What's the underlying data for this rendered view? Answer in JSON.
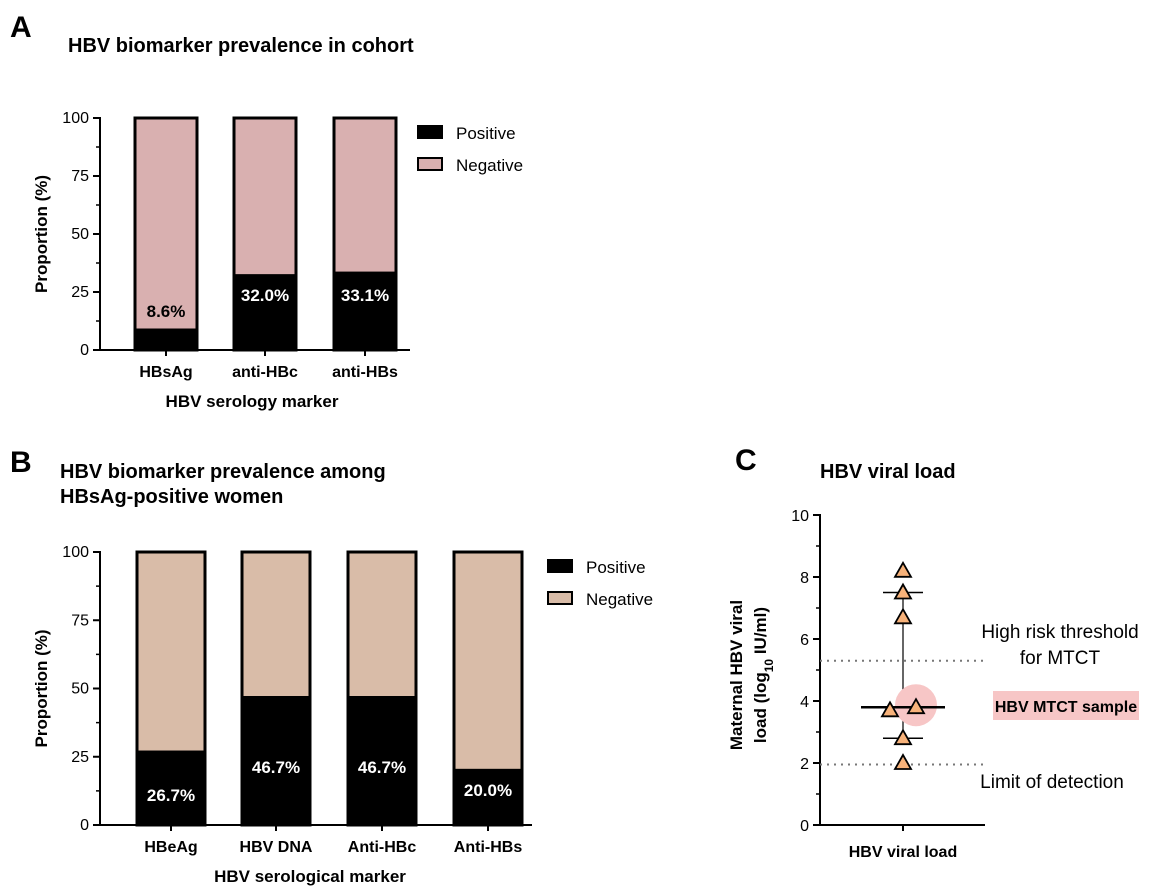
{
  "panels": [
    {
      "letter": "A",
      "title_lines": [
        "HBV biomarker prevalence in cohort"
      ]
    },
    {
      "letter": "B",
      "title_lines": [
        "HBV biomarker prevalence among",
        "HBsAg-positive women"
      ]
    },
    {
      "letter": "C",
      "title_lines": [
        "HBV viral load"
      ]
    }
  ],
  "chart_data": [
    {
      "type": "bar",
      "stacked": true,
      "title": "HBV biomarker prevalence in cohort",
      "xlabel": "HBV serology marker",
      "ylabel": "Proportion (%)",
      "ylim": [
        0,
        100
      ],
      "yticks": [
        0,
        25,
        50,
        75,
        100
      ],
      "categories": [
        "HBsAg",
        "anti-HBc",
        "anti-HBs"
      ],
      "series": [
        {
          "name": "Positive",
          "color": "#000000",
          "values": [
            8.6,
            32.0,
            33.1
          ]
        },
        {
          "name": "Negative",
          "color": "#d9b0b0",
          "values": [
            91.4,
            68.0,
            66.9
          ]
        }
      ],
      "data_labels": [
        "8.6%",
        "32.0%",
        "33.1%"
      ],
      "legend_position": "right"
    },
    {
      "type": "bar",
      "stacked": true,
      "title": "HBV biomarker prevalence among HBsAg-positive women",
      "xlabel": "HBV serological marker",
      "ylabel": "Proportion (%)",
      "ylim": [
        0,
        100
      ],
      "yticks": [
        0,
        25,
        50,
        75,
        100
      ],
      "categories": [
        "HBeAg",
        "HBV DNA",
        "Anti-HBc",
        "Anti-HBs"
      ],
      "series": [
        {
          "name": "Positive",
          "color": "#000000",
          "values": [
            26.7,
            46.7,
            46.7,
            20.0
          ]
        },
        {
          "name": "Negative",
          "color": "#d9bca8",
          "values": [
            73.3,
            53.3,
            53.3,
            80.0
          ]
        }
      ],
      "data_labels": [
        "26.7%",
        "46.7%",
        "46.7%",
        "20.0%"
      ],
      "legend_position": "right"
    },
    {
      "type": "scatter",
      "title": "HBV viral load",
      "xlabel": "HBV viral load",
      "ylabel_lines": [
        "Maternal HBV viral",
        "load (log",
        "10",
        " IU/ml)"
      ],
      "ylim": [
        0,
        10
      ],
      "yticks": [
        0,
        2,
        4,
        6,
        8,
        10
      ],
      "points": [
        {
          "dx": 0,
          "y": 8.2
        },
        {
          "dx": 0,
          "y": 7.5
        },
        {
          "dx": 0,
          "y": 6.7
        },
        {
          "dx": -1,
          "y": 3.7
        },
        {
          "dx": 1,
          "y": 3.8,
          "highlight": true
        },
        {
          "dx": 0,
          "y": 2.8
        },
        {
          "dx": 0,
          "y": 2.0
        }
      ],
      "marker_color": "#f7b27a",
      "median": 3.8,
      "range": [
        2.8,
        7.5
      ],
      "reference_lines": [
        {
          "y": 5.3,
          "label_lines": [
            "High risk threshold",
            "for MTCT"
          ]
        },
        {
          "y": 1.95,
          "label_lines": [
            "Limit of detection"
          ]
        }
      ],
      "highlight_label": "HBV MTCT sample",
      "highlight_color": "#f7c6c6"
    }
  ]
}
